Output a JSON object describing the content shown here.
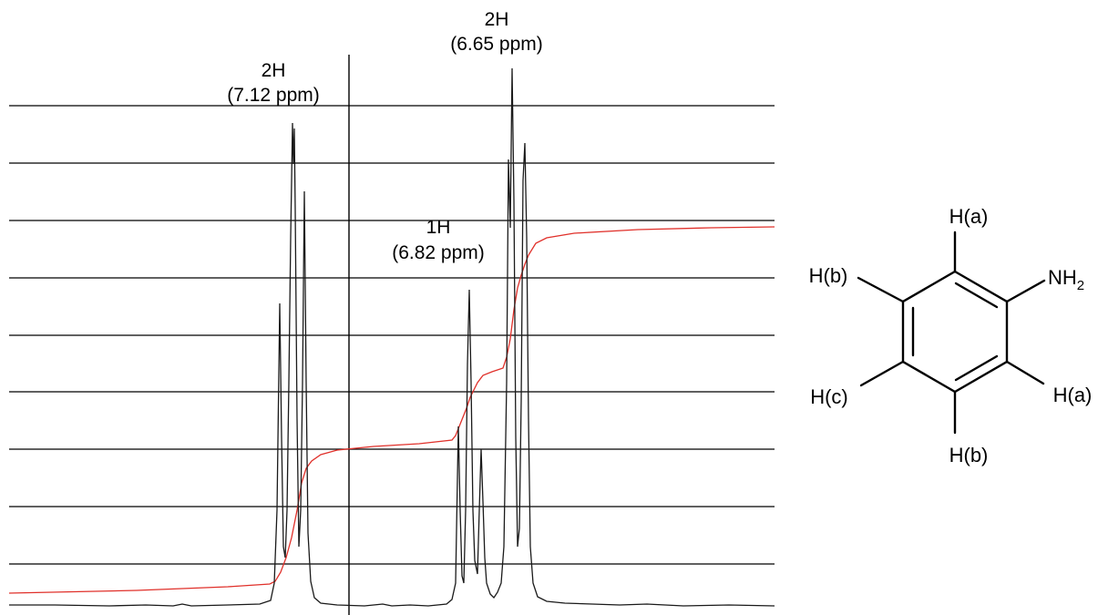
{
  "spectrum": {
    "peaks": [
      {
        "count": "2H",
        "shift": "(7.12 ppm)"
      },
      {
        "count": "1H",
        "shift": "(6.82 ppm)"
      },
      {
        "count": "2H",
        "shift": "(6.65 ppm)"
      }
    ],
    "colors": {
      "trace": "#1a1a1a",
      "integral": "#e0302a",
      "grid": "#000000"
    }
  },
  "molecule": {
    "labels": {
      "top": "H(a)",
      "upper_left": "H(b)",
      "substituent": "NH",
      "substituent_subscript": "2",
      "lower_left": "H(c)",
      "lower_right": "H(a)",
      "bottom": "H(b)"
    }
  }
}
